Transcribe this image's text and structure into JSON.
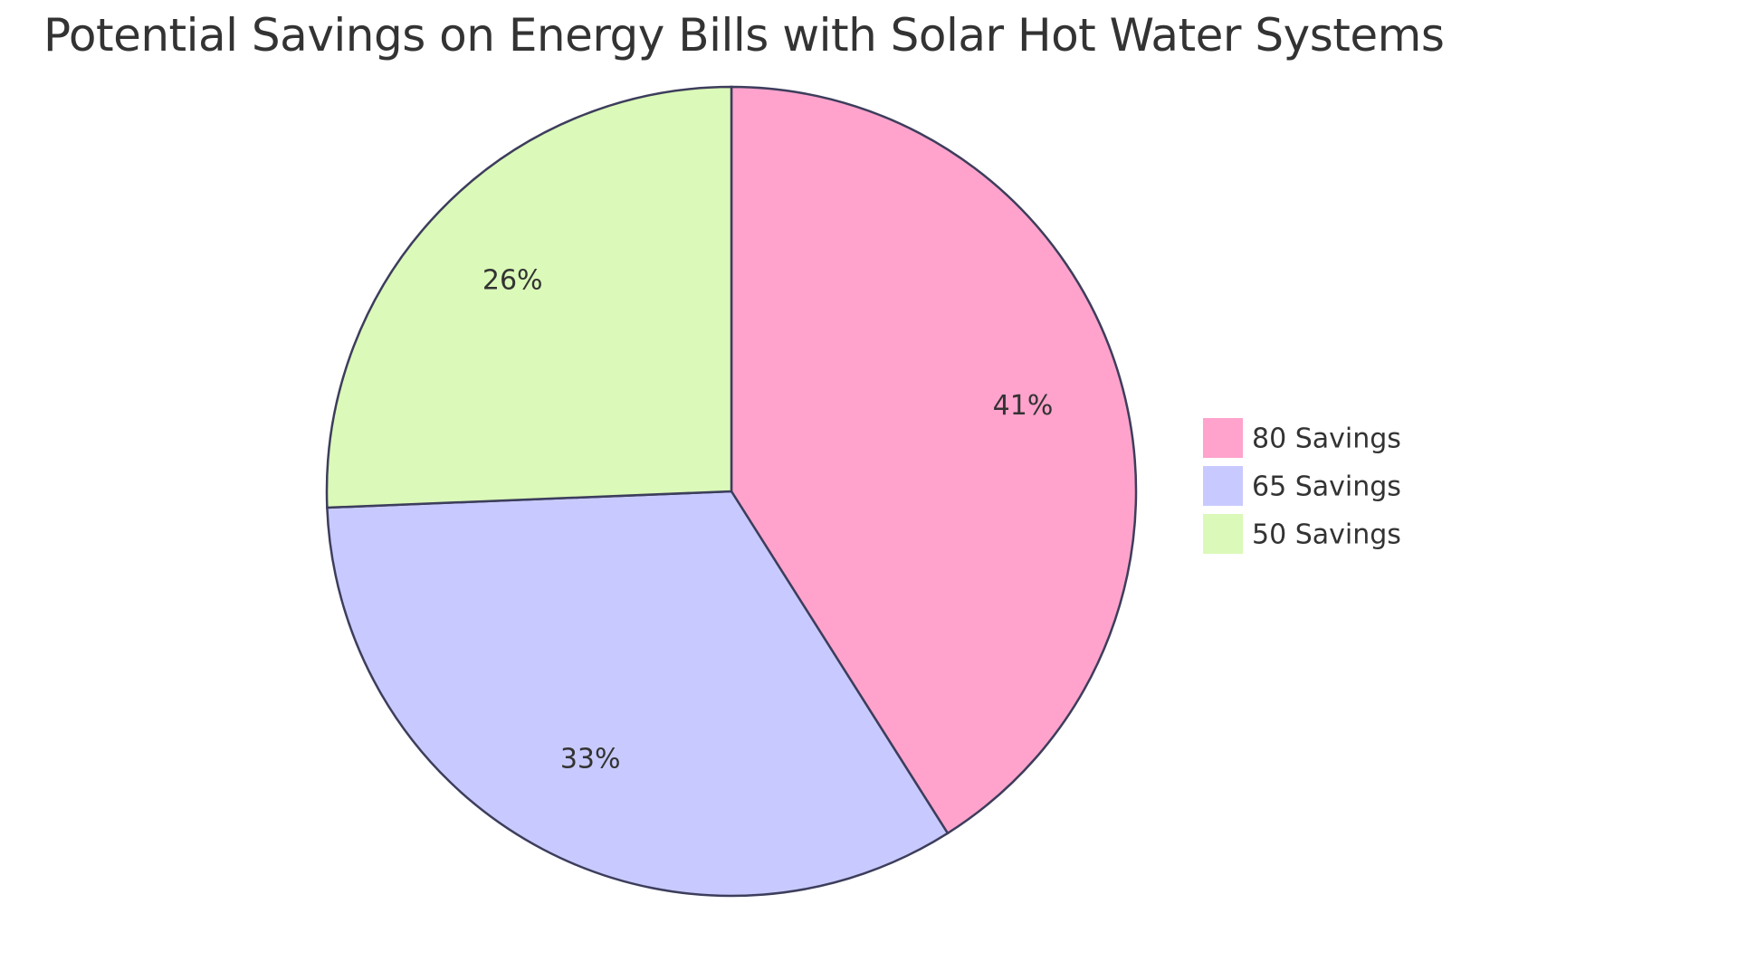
{
  "chart_data": {
    "type": "pie",
    "title": "Potential Savings on Energy Bills with Solar Hot Water Systems",
    "categories": [
      "80 Savings",
      "65 Savings",
      "50 Savings"
    ],
    "values": [
      80,
      65,
      50
    ],
    "percent_labels": [
      "41%",
      "33%",
      "26%"
    ],
    "colors": [
      "#ffa3cc",
      "#c8caff",
      "#dbf9b8"
    ],
    "stroke_color": "#3d3d5c",
    "legend_placement": "right",
    "legend": [
      "80 Savings",
      "65 Savings",
      "50 Savings"
    ]
  }
}
